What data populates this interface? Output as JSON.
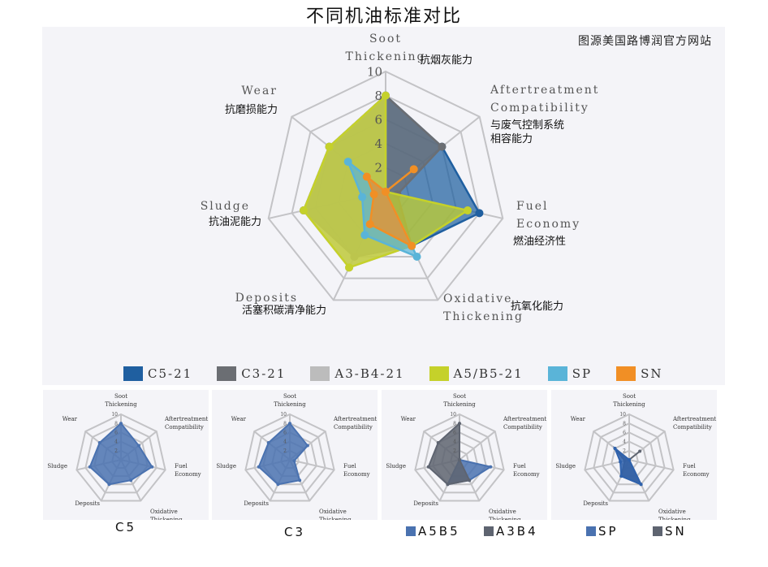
{
  "title": "不同机油标准对比",
  "watermark": "图源美国路博润官方网站",
  "axes": [
    {
      "en": [
        "Soot",
        "Thickening"
      ],
      "zh": "抗烟灰能力"
    },
    {
      "en": [
        "Aftertreatment",
        "Compatibility"
      ],
      "zh": "与废气控制系统相容能力"
    },
    {
      "en": [
        "Fuel",
        "Economy"
      ],
      "zh": "燃油经济性"
    },
    {
      "en": [
        "Oxidative",
        "Thickening"
      ],
      "zh": "抗氧化能力"
    },
    {
      "en": [
        "Deposits"
      ],
      "zh": "活塞积碳清净能力"
    },
    {
      "en": [
        "Sludge"
      ],
      "zh": "抗油泥能力"
    },
    {
      "en": [
        "Wear"
      ],
      "zh": "抗磨损能力"
    }
  ],
  "legend": [
    {
      "label": "C5-21",
      "color": "#1f5fa0"
    },
    {
      "label": "C3-21",
      "color": "#6b6e73"
    },
    {
      "label": "A3-B4-21",
      "color": "#bcbcbc"
    },
    {
      "label": "A5/B5-21",
      "color": "#c5d12a"
    },
    {
      "label": "SP",
      "color": "#5ab4d8"
    },
    {
      "label": "SN",
      "color": "#f18f25"
    }
  ],
  "chart_data": [
    {
      "type": "radar",
      "title": "不同机油标准对比",
      "categories": [
        "Soot Thickening",
        "Aftertreatment Compatibility",
        "Fuel Economy",
        "Oxidative Thickening",
        "Deposits",
        "Sludge",
        "Wear"
      ],
      "rlim": [
        0,
        10
      ],
      "ticks": [
        2,
        4,
        6,
        8,
        10
      ],
      "series": [
        {
          "name": "C5-21",
          "color": "#1f5fa0",
          "values": [
            8,
            6,
            8,
            5,
            6,
            7,
            6
          ]
        },
        {
          "name": "C3-21",
          "color": "#6b6e73",
          "values": [
            8,
            6,
            1,
            5,
            6,
            7,
            6
          ]
        },
        {
          "name": "A3-B4-21",
          "color": "#bcbcbc",
          "values": [
            8,
            0,
            0,
            5,
            7,
            7,
            6
          ]
        },
        {
          "name": "A5/B5-21",
          "color": "#c5d12a",
          "values": [
            8,
            0,
            7,
            5,
            7,
            7,
            6
          ]
        },
        {
          "name": "SP",
          "color": "#5ab4d8",
          "values": [
            0,
            0,
            0,
            6,
            4,
            2,
            4
          ]
        },
        {
          "name": "SN",
          "color": "#f18f25",
          "values": [
            0,
            3,
            0,
            5,
            3,
            1,
            2
          ]
        }
      ],
      "legend_position": "bottom"
    },
    {
      "type": "radar",
      "caption": "C5",
      "series": [
        {
          "name": "C5",
          "color": "#4a72b0",
          "values": [
            8,
            5,
            7,
            5,
            6,
            7,
            6
          ]
        }
      ]
    },
    {
      "type": "radar",
      "caption": "C3",
      "series": [
        {
          "name": "C3",
          "color": "#4a72b0",
          "values": [
            8,
            5,
            1,
            5,
            6,
            7,
            6
          ]
        }
      ]
    },
    {
      "type": "radar",
      "legend": [
        "A5B5",
        "A3B4"
      ],
      "series": [
        {
          "name": "A5B5",
          "color": "#4a72b0",
          "values": [
            0,
            0,
            7,
            5,
            6,
            0,
            0
          ]
        },
        {
          "name": "A3B4",
          "color": "#5e6470",
          "values": [
            8,
            0,
            0,
            5,
            6,
            7,
            6
          ]
        }
      ]
    },
    {
      "type": "radar",
      "legend": [
        "SP",
        "SN"
      ],
      "series": [
        {
          "name": "SN",
          "color": "#5e6470",
          "values": [
            0,
            3,
            0,
            6,
            4,
            1,
            4
          ]
        },
        {
          "name": "SP",
          "color": "#2f62ad",
          "values": [
            0,
            0,
            0,
            6,
            4,
            2,
            4
          ]
        }
      ]
    }
  ],
  "small_charts": [
    {
      "caption": "C5"
    },
    {
      "caption": "C3"
    },
    {
      "legend": [
        {
          "label": "A5B5",
          "color": "#4a72b0"
        },
        {
          "label": "A3B4",
          "color": "#5e6470"
        }
      ]
    },
    {
      "legend": [
        {
          "label": "SP",
          "color": "#4a72b0"
        },
        {
          "label": "SN",
          "color": "#5e6470"
        }
      ]
    }
  ]
}
